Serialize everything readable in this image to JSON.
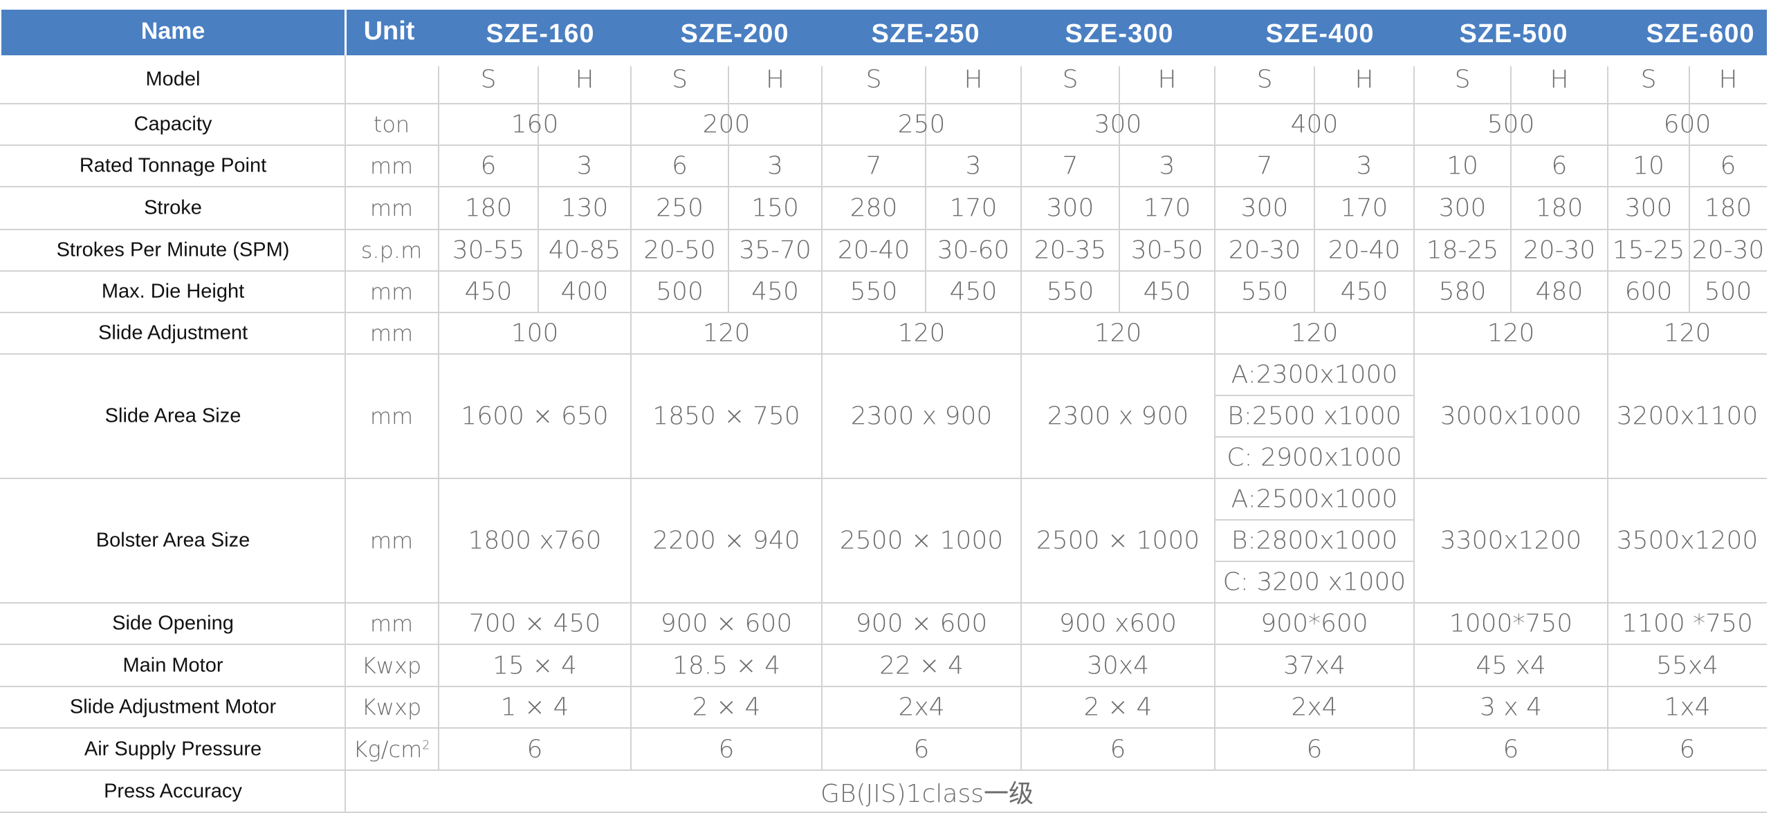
{
  "header": {
    "name": "Name",
    "unit": "Unit",
    "models": [
      "SZE-160",
      "SZE-200",
      "SZE-250",
      "SZE-300",
      "SZE-400",
      "SZE-500",
      "SZE-600"
    ]
  },
  "rows": {
    "model": {
      "label": "Model",
      "unit": "",
      "values": [
        "S",
        "H",
        "S",
        "H",
        "S",
        "H",
        "S",
        "H",
        "S",
        "H",
        "S",
        "H",
        "S",
        "H"
      ]
    },
    "capacity": {
      "label": "Capacity",
      "unit": "ton",
      "values": [
        "160",
        "200",
        "250",
        "300",
        "400",
        "500",
        "600"
      ]
    },
    "rated": {
      "label": "Rated Tonnage Point",
      "unit": "mm",
      "values": [
        "6",
        "3",
        "6",
        "3",
        "7",
        "3",
        "7",
        "3",
        "7",
        "3",
        "10",
        "6",
        "10",
        "6"
      ]
    },
    "stroke": {
      "label": "Stroke",
      "unit": "mm",
      "values": [
        "180",
        "130",
        "250",
        "150",
        "280",
        "170",
        "300",
        "170",
        "300",
        "170",
        "300",
        "180",
        "300",
        "180"
      ]
    },
    "spm": {
      "label": "Strokes Per Minute (SPM)",
      "unit": "s.p.m",
      "values": [
        "30-55",
        "40-85",
        "20-50",
        "35-70",
        "20-40",
        "30-60",
        "20-35",
        "30-50",
        "20-30",
        "20-40",
        "18-25",
        "20-30",
        "15-25",
        "20-30"
      ]
    },
    "die": {
      "label": "Max. Die Height",
      "unit": "mm",
      "values": [
        "450",
        "400",
        "500",
        "450",
        "550",
        "450",
        "550",
        "450",
        "550",
        "450",
        "580",
        "480",
        "600",
        "500"
      ]
    },
    "slideadj": {
      "label": "Slide Adjustment",
      "unit": "mm",
      "values": [
        "100",
        "120",
        "120",
        "120",
        "120",
        "120",
        "120"
      ]
    },
    "slidearea": {
      "label": "Slide Area Size",
      "unit": "mm",
      "values": [
        "1600 × 650",
        "1850  × 750",
        "2300 x 900",
        "2300 x 900",
        "",
        "3000x1000",
        "3200x1100"
      ],
      "sze400": [
        "A:2300x1000",
        "B:2500 x1000",
        "C: 2900x1000"
      ]
    },
    "bolster": {
      "label": "Bolster Area Size",
      "unit": "mm",
      "values": [
        "1800 x760",
        "2200 × 940",
        "2500 ×  1000",
        "2500  × 1000",
        "",
        "3300x1200",
        "3500x1200"
      ],
      "sze400": [
        "A:2500x1000",
        "B:2800x1000",
        "C: 3200 x1000"
      ]
    },
    "side": {
      "label": "Side Opening",
      "unit": "mm",
      "values": [
        "700 × 450",
        "900 × 600",
        "900 × 600",
        "900 x600",
        "900*600",
        "1000*750",
        "1100 *750"
      ]
    },
    "motor": {
      "label": "Main Motor",
      "unit": "Kwxp",
      "values": [
        "15 × 4",
        "18.5 × 4",
        "22 × 4",
        "30x4",
        "37x4",
        "45 x4",
        "55x4"
      ]
    },
    "adjmotor": {
      "label": "Slide Adjustment Motor",
      "unit": "Kwxp",
      "values": [
        "1 × 4",
        "2 × 4",
        "2x4",
        "2 × 4",
        "2x4",
        "3 x 4",
        "1x4"
      ]
    },
    "air": {
      "label": "Air Supply Pressure",
      "unit_base": "Kg/cm",
      "unit_sup": "2",
      "values": [
        "6",
        "6",
        "6",
        "6",
        "6",
        "6",
        "6"
      ]
    },
    "accuracy": {
      "label": "Press Accuracy",
      "value": "GB(JIS)1class一级"
    }
  },
  "colors": {
    "header_bg": "#4a7fc2",
    "grid": "#d2d2d2",
    "text": "#6b6b6b"
  }
}
